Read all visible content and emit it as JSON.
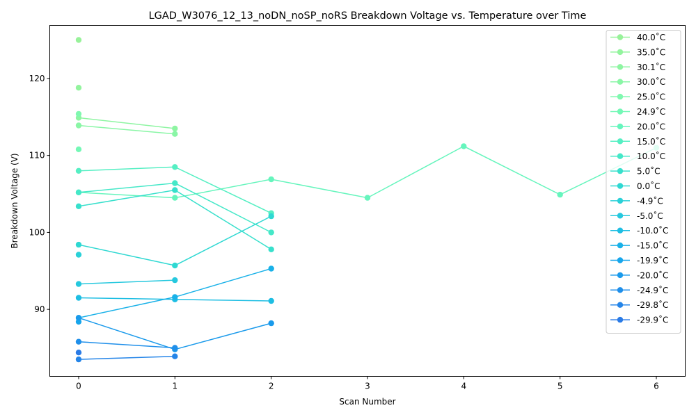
{
  "chart_data": {
    "type": "line",
    "title": "LGAD_W3076_12_13_noDN_noSP_noRS Breakdown Voltage vs. Temperature over Time",
    "xlabel": "Scan Number",
    "ylabel": "Breakdown Voltage (V)",
    "xlim": [
      -0.3,
      6.3
    ],
    "ylim": [
      81.3,
      126.9
    ],
    "xticks": [
      0,
      1,
      2,
      3,
      4,
      5,
      6
    ],
    "yticks": [
      90,
      100,
      110,
      120
    ],
    "grid": false,
    "legend_position": "top-right",
    "series": [
      {
        "name": "40.0$^\\circ$C",
        "display": "40.0˚C",
        "color": "#98f29a",
        "x": [
          0
        ],
        "y": [
          125.0
        ]
      },
      {
        "name": "35.0$^\\circ$C",
        "display": "35.0˚C",
        "color": "#93f49e",
        "x": [
          0
        ],
        "y": [
          118.8
        ]
      },
      {
        "name": "30.1$^\\circ$C",
        "display": "30.1˚C",
        "color": "#8ef5a2",
        "x": [
          0,
          1
        ],
        "y": [
          114.9,
          113.5
        ]
      },
      {
        "name": "30.0$^\\circ$C",
        "display": "30.0˚C",
        "color": "#8af6a6",
        "x": [
          0,
          1
        ],
        "y": [
          113.9,
          112.8
        ]
      },
      {
        "name": "25.0$^\\circ$C",
        "display": "25.0˚C",
        "color": "#80f8b0",
        "x": [
          0
        ],
        "y": [
          115.4
        ]
      },
      {
        "name": "24.9$^\\circ$C",
        "display": "24.9˚C",
        "color": "#74f8b6",
        "x": [
          0
        ],
        "y": [
          110.8
        ]
      },
      {
        "name": "20.0$^\\circ$C",
        "display": "20.0˚C",
        "color": "#66f5bd",
        "x": [
          0,
          1,
          2,
          3,
          4,
          5,
          6
        ],
        "y": [
          105.2,
          104.5,
          106.9,
          104.5,
          111.2,
          104.9,
          111.0
        ]
      },
      {
        "name": "15.0$^\\circ$C",
        "display": "15.0˚C",
        "color": "#55efc3",
        "x": [
          0,
          1,
          2
        ],
        "y": [
          108.0,
          108.5,
          102.5
        ]
      },
      {
        "name": "10.0$^\\circ$C",
        "display": "10.0˚C",
        "color": "#45e8c8",
        "x": [
          0,
          1,
          2
        ],
        "y": [
          105.2,
          106.4,
          100.0
        ]
      },
      {
        "name": "5.0$^\\circ$C",
        "display": "5.0˚C",
        "color": "#38e0cc",
        "x": [
          0,
          1,
          2
        ],
        "y": [
          103.4,
          105.5,
          97.8
        ]
      },
      {
        "name": "0.0$^\\circ$C",
        "display": "0.0˚C",
        "color": "#2fd8d2",
        "x": [
          0,
          1,
          2
        ],
        "y": [
          98.4,
          95.7,
          102.1
        ]
      },
      {
        "name": "-4.9$^\\circ$C",
        "display": "-4.9˚C",
        "color": "#2ad1d8",
        "x": [
          0
        ],
        "y": [
          97.1
        ]
      },
      {
        "name": "-5.0$^\\circ$C",
        "display": "-5.0˚C",
        "color": "#26c8de",
        "x": [
          0,
          1
        ],
        "y": [
          93.3,
          93.8
        ]
      },
      {
        "name": "-10.0$^\\circ$C",
        "display": "-10.0˚C",
        "color": "#1ebee3",
        "x": [
          0,
          1,
          2
        ],
        "y": [
          91.5,
          91.3,
          91.1
        ]
      },
      {
        "name": "-15.0$^\\circ$C",
        "display": "-15.0˚C",
        "color": "#19b1e8",
        "x": [
          0,
          1,
          2
        ],
        "y": [
          88.9,
          91.6,
          95.3
        ]
      },
      {
        "name": "-19.9$^\\circ$C",
        "display": "-19.9˚C",
        "color": "#17a6ec",
        "x": [
          0
        ],
        "y": [
          88.4
        ]
      },
      {
        "name": "-20.0$^\\circ$C",
        "display": "-20.0˚C",
        "color": "#1a9aeb",
        "x": [
          0,
          1,
          2
        ],
        "y": [
          88.9,
          84.8,
          88.2
        ]
      },
      {
        "name": "-24.9$^\\circ$C",
        "display": "-24.9˚C",
        "color": "#1f8fea",
        "x": [
          0,
          1
        ],
        "y": [
          85.8,
          85.0
        ]
      },
      {
        "name": "-29.8$^\\circ$C",
        "display": "-29.8˚C",
        "color": "#2585e8",
        "x": [
          0,
          1
        ],
        "y": [
          83.5,
          83.9
        ]
      },
      {
        "name": "-29.9$^\\circ$C",
        "display": "-29.9˚C",
        "color": "#2a7be6",
        "x": [
          0
        ],
        "y": [
          84.4
        ]
      }
    ]
  }
}
